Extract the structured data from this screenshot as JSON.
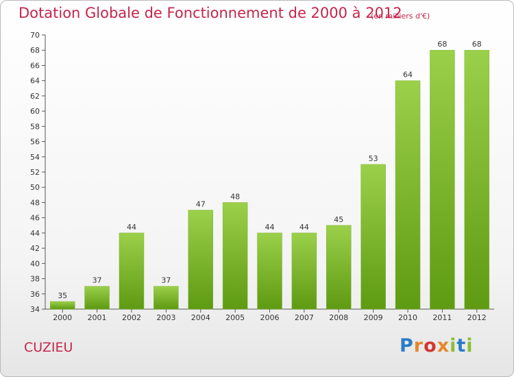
{
  "header": {
    "title": "Dotation Globale de Fonctionnement de 2000 à 2012",
    "subtitle": "(en milliers d'€)"
  },
  "footer": {
    "commune": "CUZIEU",
    "logo_text": "Proxiti"
  },
  "colors": {
    "title": "#c4254a",
    "bar_top": "#9bd04a",
    "bar_bottom": "#5e9a12",
    "logo_letters": [
      "#2a7cc7",
      "#e8862a",
      "#d3372f",
      "#e8862a",
      "#8bbf34",
      "#2a7cc7",
      "#8bbf34"
    ]
  },
  "chart_data": {
    "type": "bar",
    "categories": [
      "2000",
      "2001",
      "2002",
      "2003",
      "2004",
      "2005",
      "2006",
      "2007",
      "2008",
      "2009",
      "2010",
      "2011",
      "2012"
    ],
    "values": [
      35,
      37,
      44,
      37,
      47,
      48,
      44,
      44,
      45,
      53,
      64,
      68,
      68
    ],
    "title": "Dotation Globale de Fonctionnement de 2000 à 2012",
    "subtitle": "(en milliers d'€)",
    "xlabel": "",
    "ylabel": "",
    "ylim": [
      34,
      70
    ],
    "yticks": [
      34,
      36,
      38,
      40,
      42,
      44,
      46,
      48,
      50,
      52,
      54,
      56,
      58,
      60,
      62,
      64,
      66,
      68,
      70
    ],
    "grid": false,
    "legend": "none"
  }
}
